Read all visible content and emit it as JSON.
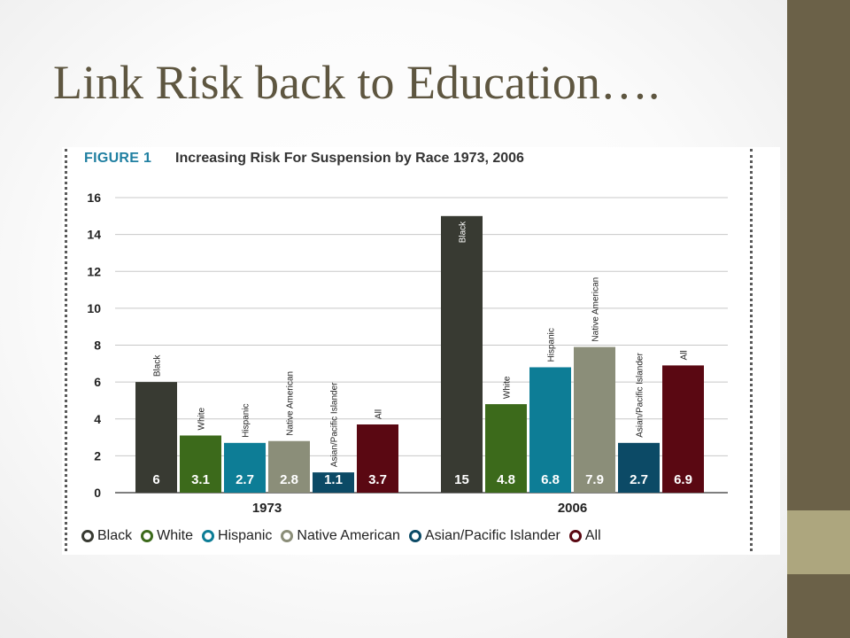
{
  "slide": {
    "title": "Link Risk back to Education….",
    "sidebar_color": "#6b6148",
    "sidebar_accent_color": "#ada67e",
    "title_color": "#5e5640"
  },
  "figure": {
    "label": "FIGURE 1",
    "title": "Increasing Risk For Suspension by Race 1973, 2006"
  },
  "chart_data": {
    "type": "bar",
    "title": "Increasing Risk For Suspension by Race 1973, 2006",
    "categories": [
      "1973",
      "2006"
    ],
    "xlabel": "",
    "ylabel": "",
    "ylim": [
      0,
      16
    ],
    "yticks": [
      "0",
      "2",
      "4",
      "6",
      "8",
      "10",
      "12",
      "14",
      "16"
    ],
    "grid": true,
    "legend_position": "bottom",
    "series": [
      {
        "name": "Black",
        "color": "#383a32",
        "values": [
          6,
          15
        ],
        "labels": [
          "6",
          "15"
        ]
      },
      {
        "name": "White",
        "color": "#3c6a1b",
        "values": [
          3.1,
          4.8
        ],
        "labels": [
          "3.1",
          "4.8"
        ]
      },
      {
        "name": "Hispanic",
        "color": "#0d7d96",
        "values": [
          2.7,
          6.8
        ],
        "labels": [
          "2.7",
          "6.8"
        ]
      },
      {
        "name": "Native American",
        "color": "#8b8e79",
        "values": [
          2.8,
          7.9
        ],
        "labels": [
          "2.8",
          "7.9"
        ]
      },
      {
        "name": "Asian/Pacific Islander",
        "color": "#0c4a66",
        "values": [
          1.1,
          2.7
        ],
        "labels": [
          "1.1",
          "2.7"
        ]
      },
      {
        "name": "All",
        "color": "#5a0812",
        "values": [
          3.7,
          6.9
        ],
        "labels": [
          "3.7",
          "6.9"
        ]
      }
    ]
  }
}
